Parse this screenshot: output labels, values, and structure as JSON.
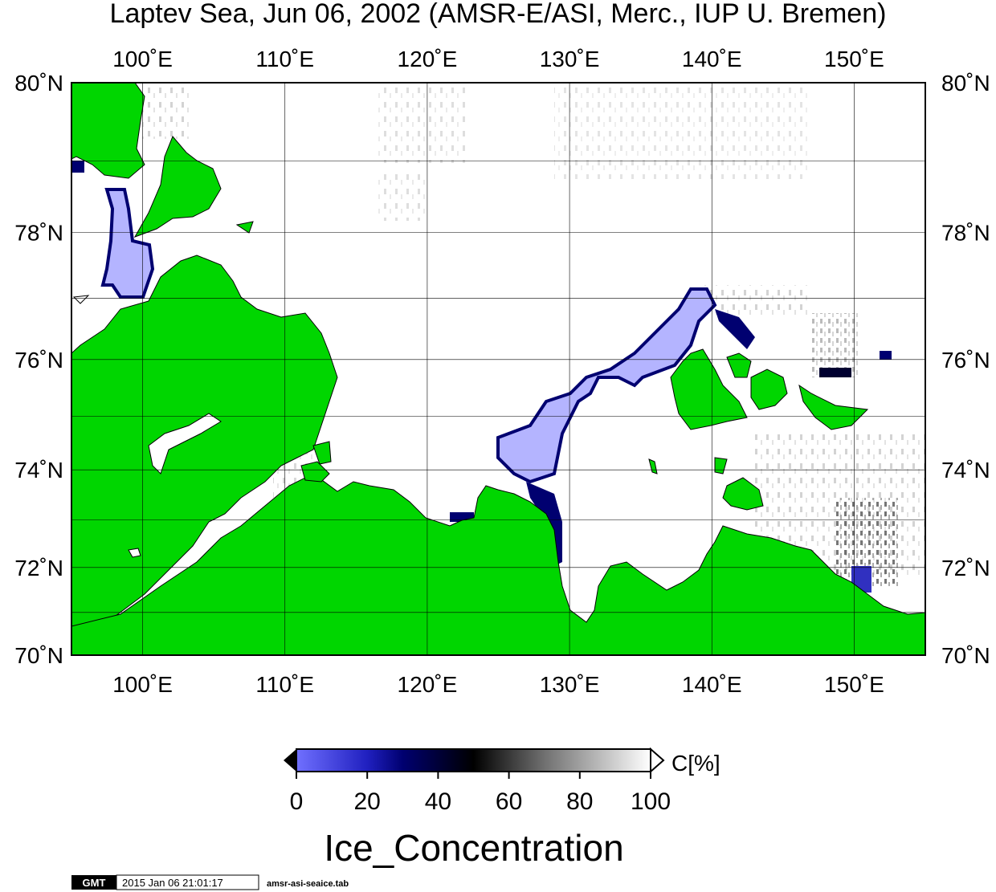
{
  "title": "Laptev Sea, Jun 06, 2002 (AMSR-E/ASI, Merc., IUP U. Bremen)",
  "map": {
    "lon_range": [
      95,
      155
    ],
    "lat_range": [
      70,
      80
    ],
    "lon_ticks": [
      {
        "value": 100,
        "label": "100˚E"
      },
      {
        "value": 110,
        "label": "110˚E"
      },
      {
        "value": 120,
        "label": "120˚E"
      },
      {
        "value": 130,
        "label": "130˚E"
      },
      {
        "value": 140,
        "label": "140˚E"
      },
      {
        "value": 150,
        "label": "150˚E"
      }
    ],
    "lat_ticks": [
      {
        "value": 80,
        "label": "80˚N"
      },
      {
        "value": 78,
        "label": "78˚N"
      },
      {
        "value": 76,
        "label": "76˚N"
      },
      {
        "value": 74,
        "label": "74˚N"
      },
      {
        "value": 72,
        "label": "72˚N"
      },
      {
        "value": 70,
        "label": "70˚N"
      }
    ],
    "colors": {
      "land": "#00d600",
      "ice_low": "#b4b4ff",
      "ice_edge": "#000070",
      "open_water": "#ffffff",
      "grid": "#000000"
    }
  },
  "colorbar": {
    "ticks": [
      "0",
      "20",
      "40",
      "60",
      "80",
      "100"
    ],
    "unit": "C[%]",
    "label": "Ice_Concentration",
    "stops": [
      {
        "value": 0,
        "color": "#7070ff"
      },
      {
        "value": 20,
        "color": "#2020c0"
      },
      {
        "value": 30,
        "color": "#000070"
      },
      {
        "value": 50,
        "color": "#000000"
      },
      {
        "value": 70,
        "color": "#707070"
      },
      {
        "value": 100,
        "color": "#ffffff"
      }
    ]
  },
  "footer": {
    "logo": "GMT",
    "timestamp": "2015 Jan 06 21:01:17",
    "filename": "amsr-asi-seaice.tab"
  }
}
